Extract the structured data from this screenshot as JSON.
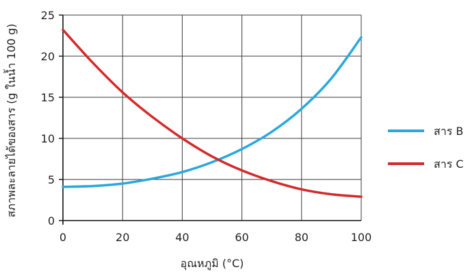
{
  "chart_data": {
    "type": "line",
    "title": "",
    "xlabel": "อุณหภูมิ (°C)",
    "ylabel": "สภาพละลายได้ของสาร (g ในน้ำ 100 g)",
    "xlim": [
      0,
      100
    ],
    "ylim": [
      0,
      25
    ],
    "x_ticks": [
      "0",
      "20",
      "40",
      "60",
      "80",
      "100"
    ],
    "y_ticks": [
      "0",
      "5",
      "10",
      "15",
      "20",
      "25"
    ],
    "grid": true,
    "legend_position": "right",
    "x": [
      0,
      10,
      20,
      30,
      40,
      50,
      60,
      70,
      80,
      90,
      100
    ],
    "series": [
      {
        "name": "สาร B",
        "color": "#29a8dd",
        "values": [
          4.1,
          4.2,
          4.5,
          5.1,
          5.9,
          7.1,
          8.7,
          10.8,
          13.6,
          17.3,
          22.3
        ]
      },
      {
        "name": "สาร C",
        "color": "#d42a2a",
        "values": [
          23.2,
          19.2,
          15.6,
          12.6,
          10.0,
          7.8,
          6.1,
          4.8,
          3.8,
          3.2,
          2.9
        ]
      }
    ]
  }
}
